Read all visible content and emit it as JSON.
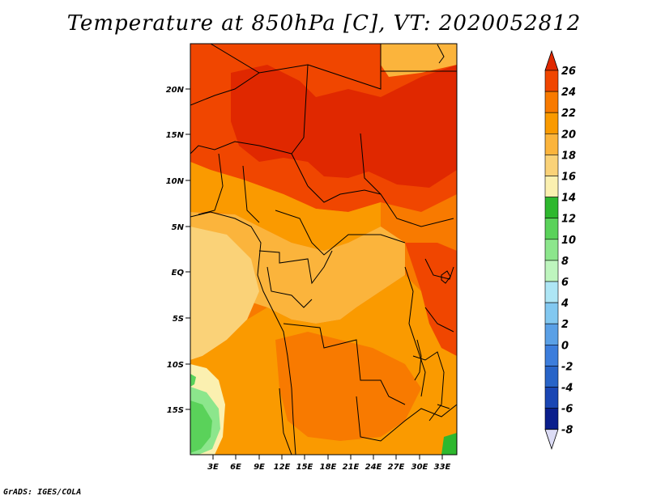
{
  "title": "Temperature at 850hPa [C], VT: 2020052812",
  "credit": "GrADS: IGES/COLA",
  "map": {
    "lon_ticks": [
      "3E",
      "6E",
      "9E",
      "12E",
      "15E",
      "18E",
      "21E",
      "24E",
      "27E",
      "30E",
      "33E"
    ],
    "lat_ticks": [
      "20N",
      "15N",
      "10N",
      "5N",
      "EQ",
      "5S",
      "10S",
      "15S"
    ],
    "lat_range": [
      "20S",
      "25N"
    ],
    "lon_range": [
      "0",
      "35E"
    ]
  },
  "colorbar": {
    "labels": [
      "26",
      "24",
      "22",
      "20",
      "18",
      "16",
      "14",
      "12",
      "10",
      "8",
      "6",
      "4",
      "2",
      "0",
      "-2",
      "-4",
      "-6",
      "-8"
    ],
    "colors": [
      "#e02800",
      "#f04600",
      "#f87a00",
      "#fa9a00",
      "#fbb43c",
      "#fad278",
      "#fbf0b0",
      "#2eb82e",
      "#5ad25a",
      "#8ce68c",
      "#bef5be",
      "#aee6f5",
      "#82c8f0",
      "#5aa0e6",
      "#3c7ddc",
      "#2864c8",
      "#1a46b4",
      "#0a1e8c",
      "#dcdcf5"
    ],
    "triangles": {
      "top": "#e02800",
      "bottom": "#dcdcf5"
    }
  }
}
